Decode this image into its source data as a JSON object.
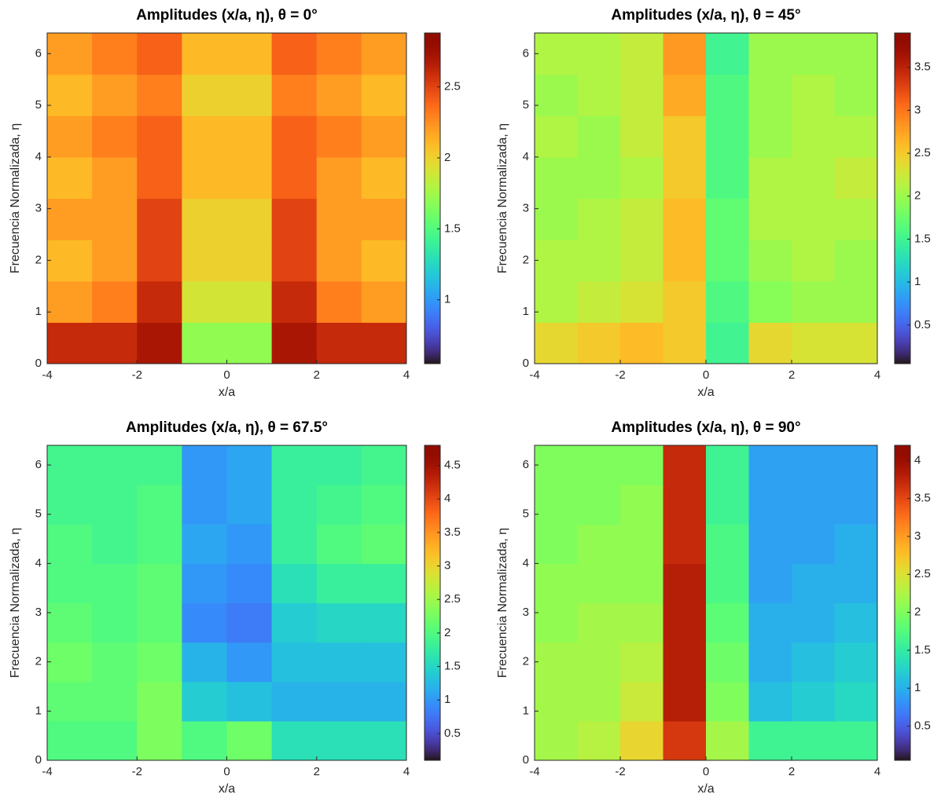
{
  "chart_data": [
    {
      "type": "heatmap",
      "title": "Amplitudes (x/a, η), θ = 0°",
      "xlabel": "x/a",
      "ylabel": "Frecuencia Normalizada, η",
      "colormap": "turbo",
      "x": [
        -3.5,
        -2.5,
        -1.5,
        -0.5,
        0.5,
        1.5,
        2.5,
        3.5
      ],
      "y": [
        0.4,
        1.2,
        2.0,
        2.8,
        3.6,
        4.4,
        5.2,
        6.0
      ],
      "values": [
        [
          2.6,
          2.6,
          2.7,
          1.7,
          1.7,
          2.7,
          2.6,
          2.6
        ],
        [
          2.2,
          2.3,
          2.6,
          1.9,
          1.9,
          2.6,
          2.3,
          2.2
        ],
        [
          2.1,
          2.2,
          2.5,
          2.0,
          2.0,
          2.5,
          2.2,
          2.1
        ],
        [
          2.2,
          2.2,
          2.5,
          2.0,
          2.0,
          2.5,
          2.2,
          2.2
        ],
        [
          2.1,
          2.2,
          2.4,
          2.1,
          2.1,
          2.4,
          2.2,
          2.1
        ],
        [
          2.2,
          2.3,
          2.4,
          2.1,
          2.1,
          2.4,
          2.3,
          2.2
        ],
        [
          2.1,
          2.2,
          2.3,
          2.0,
          2.0,
          2.3,
          2.2,
          2.1
        ],
        [
          2.2,
          2.3,
          2.4,
          2.1,
          2.1,
          2.4,
          2.3,
          2.2
        ]
      ],
      "xlim": [
        -4,
        4
      ],
      "ylim": [
        0,
        6.4
      ],
      "xticks": [
        -4,
        -2,
        0,
        2,
        4
      ],
      "yticks": [
        0,
        1,
        2,
        3,
        4,
        5,
        6
      ],
      "clim": [
        0.55,
        2.88
      ],
      "cticks": [
        1,
        1.5,
        2,
        2.5
      ]
    },
    {
      "type": "heatmap",
      "title": "Amplitudes (x/a, η), θ = 45°",
      "xlabel": "x/a",
      "ylabel": "Frecuencia Normalizada, η",
      "colormap": "turbo",
      "x": [
        -3.5,
        -2.5,
        -1.5,
        -0.5,
        0.5,
        1.5,
        2.5,
        3.5
      ],
      "y": [
        0.4,
        1.2,
        2.0,
        2.8,
        3.6,
        4.4,
        5.2,
        6.0
      ],
      "values": [
        [
          2.4,
          2.5,
          2.6,
          2.5,
          1.5,
          2.4,
          2.3,
          2.3
        ],
        [
          2.1,
          2.2,
          2.3,
          2.5,
          1.6,
          1.9,
          2.0,
          2.0
        ],
        [
          2.1,
          2.1,
          2.2,
          2.6,
          1.7,
          2.0,
          2.1,
          2.0
        ],
        [
          2.0,
          2.1,
          2.2,
          2.6,
          1.7,
          2.1,
          2.1,
          2.1
        ],
        [
          2.0,
          2.0,
          2.1,
          2.5,
          1.6,
          2.1,
          2.1,
          2.2
        ],
        [
          2.1,
          2.0,
          2.2,
          2.5,
          1.6,
          2.0,
          2.1,
          2.1
        ],
        [
          2.0,
          2.1,
          2.2,
          2.7,
          1.6,
          2.0,
          2.1,
          2.0
        ],
        [
          2.1,
          2.1,
          2.2,
          2.8,
          1.5,
          2.0,
          2.0,
          2.0
        ]
      ],
      "xlim": [
        -4,
        4
      ],
      "ylim": [
        0,
        6.4
      ],
      "xticks": [
        -4,
        -2,
        0,
        2,
        4
      ],
      "yticks": [
        0,
        1,
        2,
        3,
        4,
        5,
        6
      ],
      "clim": [
        0.05,
        3.9
      ],
      "cticks": [
        0.5,
        1,
        1.5,
        2,
        2.5,
        3,
        3.5
      ]
    },
    {
      "type": "heatmap",
      "title": "Amplitudes (x/a, η), θ = 67.5°",
      "xlabel": "x/a",
      "ylabel": "Frecuencia Normalizada, η",
      "colormap": "turbo",
      "x": [
        -3.5,
        -2.5,
        -1.5,
        -0.5,
        0.5,
        1.5,
        2.5,
        3.5
      ],
      "y": [
        0.4,
        1.2,
        2.0,
        2.8,
        3.6,
        4.4,
        5.2,
        6.0
      ],
      "values": [
        [
          2.0,
          2.0,
          2.3,
          2.0,
          2.2,
          1.6,
          1.6,
          1.6
        ],
        [
          2.1,
          2.1,
          2.3,
          1.4,
          1.3,
          1.2,
          1.2,
          1.2
        ],
        [
          2.2,
          2.1,
          2.2,
          1.2,
          1.0,
          1.3,
          1.3,
          1.3
        ],
        [
          2.1,
          2.0,
          2.1,
          0.9,
          0.8,
          1.4,
          1.5,
          1.5
        ],
        [
          2.0,
          2.0,
          2.1,
          1.0,
          0.9,
          1.6,
          1.8,
          1.8
        ],
        [
          2.0,
          1.9,
          2.0,
          1.1,
          1.0,
          1.8,
          2.0,
          2.1
        ],
        [
          1.9,
          1.9,
          2.0,
          1.0,
          1.1,
          1.8,
          1.9,
          2.0
        ],
        [
          1.9,
          1.9,
          1.9,
          1.0,
          1.1,
          1.8,
          1.8,
          1.9
        ]
      ],
      "xlim": [
        -4,
        4
      ],
      "ylim": [
        0,
        6.4
      ],
      "xticks": [
        -4,
        -2,
        0,
        2,
        4
      ],
      "yticks": [
        0,
        1,
        2,
        3,
        4,
        5,
        6
      ],
      "clim": [
        0.1,
        4.8
      ],
      "cticks": [
        0.5,
        1,
        1.5,
        2,
        2.5,
        3,
        3.5,
        4,
        4.5
      ]
    },
    {
      "type": "heatmap",
      "title": "Amplitudes (x/a, η), θ = 90°",
      "xlabel": "x/a",
      "ylabel": "Frecuencia Normalizada, η",
      "colormap": "turbo",
      "x": [
        -3.5,
        -2.5,
        -1.5,
        -0.5,
        0.5,
        1.5,
        2.5,
        3.5
      ],
      "y": [
        0.4,
        1.2,
        2.0,
        2.8,
        3.6,
        4.4,
        5.2,
        6.0
      ],
      "values": [
        [
          2.2,
          2.3,
          2.6,
          3.6,
          2.2,
          1.6,
          1.6,
          1.6
        ],
        [
          2.2,
          2.2,
          2.4,
          3.8,
          2.0,
          1.1,
          1.2,
          1.3
        ],
        [
          2.2,
          2.2,
          2.3,
          3.8,
          1.9,
          1.0,
          1.1,
          1.2
        ],
        [
          2.1,
          2.2,
          2.2,
          3.8,
          1.8,
          1.0,
          1.0,
          1.1
        ],
        [
          2.1,
          2.1,
          2.1,
          3.8,
          1.7,
          0.9,
          1.0,
          1.0
        ],
        [
          2.0,
          2.1,
          2.1,
          3.7,
          1.7,
          0.9,
          0.9,
          1.0
        ],
        [
          2.0,
          2.0,
          2.1,
          3.7,
          1.6,
          0.9,
          0.9,
          0.9
        ],
        [
          2.0,
          2.0,
          2.0,
          3.7,
          1.6,
          0.9,
          0.9,
          0.9
        ]
      ],
      "xlim": [
        -4,
        4
      ],
      "ylim": [
        0,
        6.4
      ],
      "xticks": [
        -4,
        -2,
        0,
        2,
        4
      ],
      "yticks": [
        0,
        1,
        2,
        3,
        4,
        5,
        6
      ],
      "clim": [
        0.05,
        4.2
      ],
      "cticks": [
        0.5,
        1,
        1.5,
        2,
        2.5,
        3,
        3.5,
        4
      ]
    }
  ]
}
